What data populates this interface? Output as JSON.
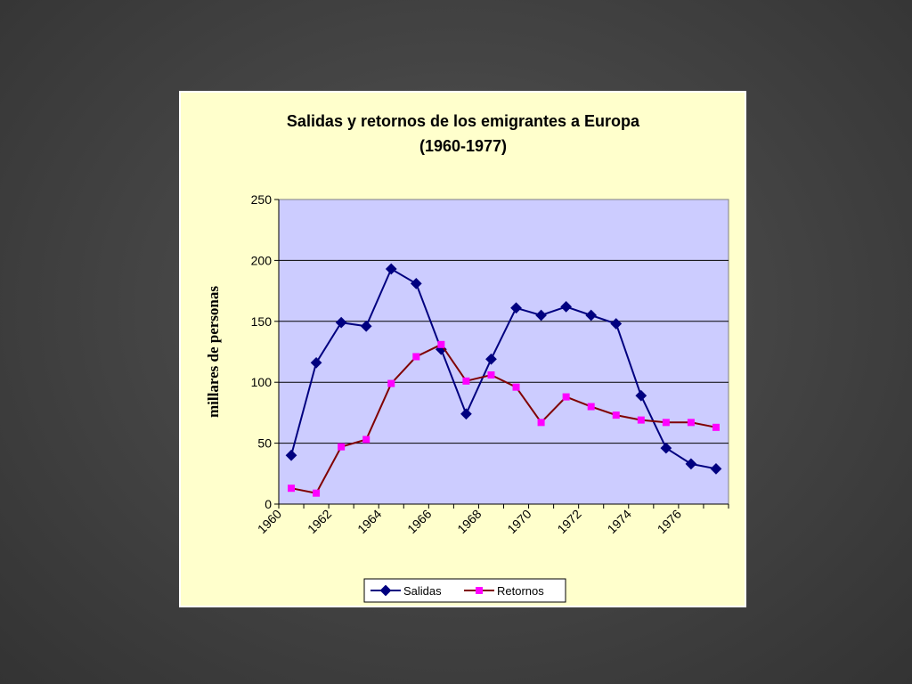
{
  "chart_data": {
    "type": "line",
    "title": "Salidas y retornos de los emigrantes a Europa",
    "subtitle": "(1960-1977)",
    "ylabel": "millares de personas",
    "xlabel": "",
    "ylim": [
      0,
      250
    ],
    "yticks": [
      0,
      50,
      100,
      150,
      200,
      250
    ],
    "x": [
      1960,
      1961,
      1962,
      1963,
      1964,
      1965,
      1966,
      1967,
      1968,
      1969,
      1970,
      1971,
      1972,
      1973,
      1974,
      1975,
      1976,
      1977
    ],
    "xtick_labels": [
      "1960",
      "1962",
      "1964",
      "1966",
      "1968",
      "1970",
      "1972",
      "1974",
      "1976"
    ],
    "grid": "horizontal",
    "legend_position": "bottom",
    "series": [
      {
        "name": "Salidas",
        "color": "#000080",
        "marker": "diamond",
        "values": [
          40,
          116,
          149,
          146,
          193,
          181,
          127,
          74,
          119,
          161,
          155,
          162,
          155,
          148,
          89,
          46,
          33,
          29
        ]
      },
      {
        "name": "Retornos",
        "color": "#800000",
        "marker_color": "#ff00ff",
        "marker": "square",
        "values": [
          13,
          9,
          47,
          53,
          99,
          121,
          131,
          101,
          106,
          96,
          67,
          88,
          80,
          73,
          69,
          67,
          67,
          63
        ]
      }
    ],
    "plot_background": "#ccccff",
    "card_background": "#ffffcc"
  }
}
